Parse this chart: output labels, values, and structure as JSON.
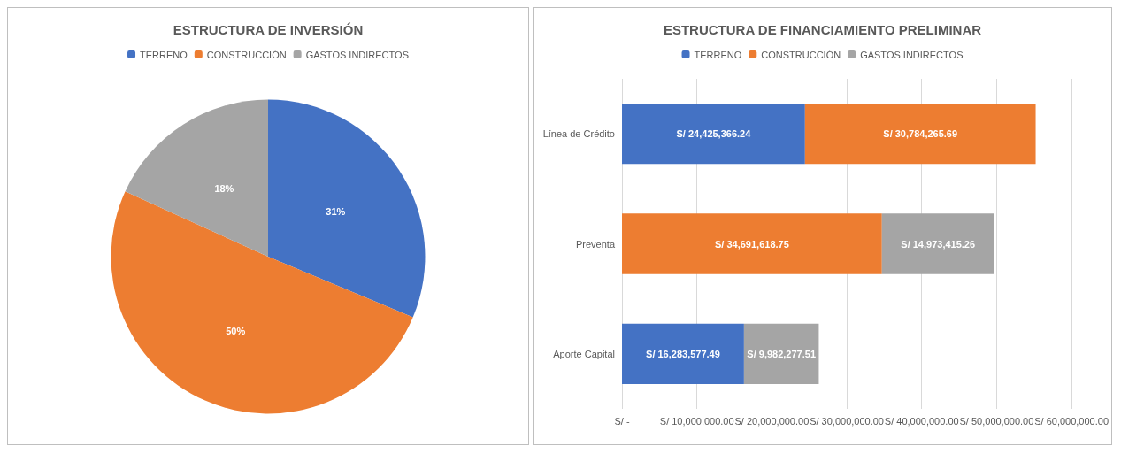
{
  "chart_data": [
    {
      "type": "pie",
      "title": "ESTRUCTURA DE INVERSIÓN",
      "categories": [
        "TERRENO",
        "CONSTRUCCIÓN",
        "GASTOS INDIRECTOS"
      ],
      "values": [
        31,
        50,
        18
      ],
      "colors": [
        "#4472c4",
        "#ed7d31",
        "#a5a5a5"
      ],
      "value_labels": [
        "31%",
        "50%",
        "18%"
      ],
      "legend": "top"
    },
    {
      "type": "bar",
      "orientation": "horizontal",
      "stacked": true,
      "title": "ESTRUCTURA DE FINANCIAMIENTO PRELIMINAR",
      "categories": [
        "Línea de Crédito",
        "Preventa",
        "Aporte Capital"
      ],
      "series": [
        {
          "name": "TERRENO",
          "color": "#4472c4",
          "values": [
            24425366.24,
            null,
            16283577.49
          ],
          "value_labels": [
            "S/ 24,425,366.24",
            null,
            "S/ 16,283,577.49"
          ]
        },
        {
          "name": "CONSTRUCCIÓN",
          "color": "#ed7d31",
          "values": [
            30784265.69,
            34691618.75,
            null
          ],
          "value_labels": [
            "S/ 30,784,265.69",
            "S/ 34,691,618.75",
            null
          ]
        },
        {
          "name": "GASTOS INDIRECTOS",
          "color": "#a5a5a5",
          "values": [
            null,
            14973415.26,
            9982277.51
          ],
          "value_labels": [
            null,
            "S/ 14,973,415.26",
            "S/ 9,982,277.51"
          ]
        }
      ],
      "xlim": [
        0,
        60000000
      ],
      "xticks": [
        {
          "value": 0,
          "label": "S/ -"
        },
        {
          "value": 10000000,
          "label": "S/ 10,000,000.00"
        },
        {
          "value": 20000000,
          "label": "S/ 20,000,000.00"
        },
        {
          "value": 30000000,
          "label": "S/ 30,000,000.00"
        },
        {
          "value": 40000000,
          "label": "S/ 40,000,000.00"
        },
        {
          "value": 50000000,
          "label": "S/ 50,000,000.00"
        },
        {
          "value": 60000000,
          "label": "S/ 60,000,000.00"
        }
      ],
      "grid": "x",
      "legend": "top"
    }
  ]
}
